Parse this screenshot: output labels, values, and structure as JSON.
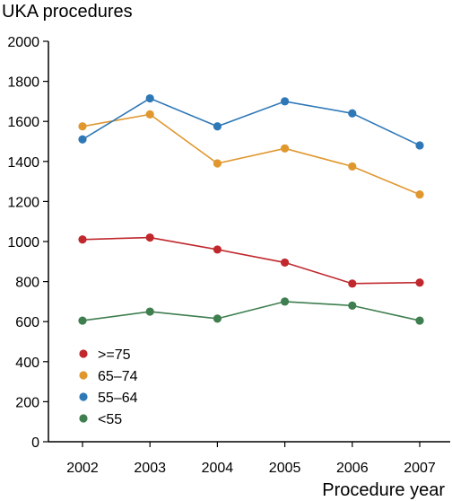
{
  "chart_data": {
    "type": "line",
    "ylabel": "UKA procedures",
    "xlabel": "Procedure year",
    "x": [
      "2002",
      "2003",
      "2004",
      "2005",
      "2006",
      "2007"
    ],
    "ylim": [
      0,
      2000
    ],
    "yticks": [
      0,
      200,
      400,
      600,
      800,
      1000,
      1200,
      1400,
      1600,
      1800,
      2000
    ],
    "grid": false,
    "legend_position": "bottom-left",
    "series": [
      {
        "name": ">=75",
        "color": "#c0282d",
        "values": [
          1010,
          1020,
          960,
          895,
          790,
          795
        ]
      },
      {
        "name": "65–74",
        "color": "#e0972e",
        "values": [
          1575,
          1635,
          1390,
          1465,
          1375,
          1235
        ]
      },
      {
        "name": "55–64",
        "color": "#2f78b7",
        "values": [
          1510,
          1715,
          1575,
          1700,
          1640,
          1480
        ]
      },
      {
        "name": "<55",
        "color": "#3e7e4f",
        "values": [
          605,
          650,
          615,
          700,
          680,
          605
        ]
      }
    ]
  }
}
